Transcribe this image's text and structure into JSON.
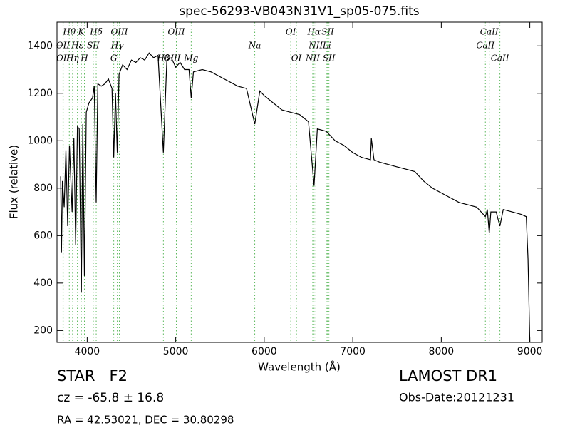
{
  "chart_data": {
    "type": "line",
    "title": "spec-56293-VB043N31V1_sp05-075.fits",
    "x_label": "Wavelength (Å)",
    "y_label": "Flux (relative)",
    "color": "#000000",
    "xlim": [
      3659,
      9140
    ],
    "ylim": [
      150,
      1500
    ],
    "xticks": [
      4000,
      5000,
      6000,
      7000,
      8000,
      9000
    ],
    "yticks": [
      200,
      400,
      600,
      800,
      1000,
      1200,
      1400
    ],
    "x": [
      3700,
      3710,
      3720,
      3740,
      3760,
      3780,
      3800,
      3830,
      3850,
      3870,
      3890,
      3910,
      3934,
      3950,
      3969,
      3990,
      4020,
      4060,
      4080,
      4102,
      4120,
      4160,
      4200,
      4240,
      4280,
      4300,
      4320,
      4340,
      4360,
      4400,
      4450,
      4500,
      4550,
      4600,
      4650,
      4700,
      4750,
      4800,
      4861,
      4900,
      4950,
      5000,
      5050,
      5100,
      5150,
      5175,
      5200,
      5300,
      5400,
      5500,
      5600,
      5700,
      5800,
      5893,
      5950,
      6000,
      6100,
      6200,
      6300,
      6400,
      6500,
      6563,
      6600,
      6700,
      6800,
      6900,
      7000,
      7100,
      7200,
      7210,
      7240,
      7300,
      7400,
      7500,
      7600,
      7700,
      7800,
      7900,
      8000,
      8100,
      8200,
      8300,
      8400,
      8498,
      8520,
      8542,
      8560,
      8620,
      8662,
      8700,
      8800,
      8900,
      8960,
      8980,
      9000
    ],
    "y": [
      850,
      530,
      830,
      720,
      960,
      640,
      980,
      700,
      1010,
      560,
      1060,
      1050,
      360,
      1070,
      430,
      1120,
      1160,
      1180,
      1230,
      740,
      1240,
      1230,
      1240,
      1260,
      1220,
      930,
      1200,
      950,
      1280,
      1320,
      1300,
      1340,
      1330,
      1350,
      1340,
      1370,
      1350,
      1360,
      950,
      1340,
      1350,
      1310,
      1330,
      1300,
      1300,
      1180,
      1290,
      1300,
      1290,
      1270,
      1250,
      1230,
      1220,
      1070,
      1210,
      1190,
      1160,
      1130,
      1120,
      1110,
      1080,
      810,
      1050,
      1040,
      1000,
      980,
      950,
      930,
      920,
      1010,
      920,
      910,
      900,
      890,
      880,
      870,
      830,
      800,
      780,
      760,
      740,
      730,
      720,
      680,
      710,
      610,
      700,
      700,
      640,
      710,
      700,
      690,
      680,
      500,
      150
    ],
    "line_color": "#5cb85c",
    "spectral_lines": [
      [
        {
          "label": "Hθ",
          "x": 3798
        },
        {
          "label": "K",
          "x": 3934
        },
        {
          "label": "Hδ",
          "x": 4102
        },
        {
          "label": "OIII",
          "x": 4363
        },
        {
          "label": "OIII",
          "x": 5007
        },
        {
          "label": "OI",
          "x": 6300
        },
        {
          "label": "Hα",
          "x": 6563
        },
        {
          "label": "SII",
          "x": 6717
        },
        {
          "label": "CaII",
          "x": 8542
        }
      ],
      [
        {
          "label": "OII",
          "x": 3727
        },
        {
          "label": "Hε",
          "x": 3889
        },
        {
          "label": "SII",
          "x": 4069
        },
        {
          "label": "Hγ",
          "x": 4340
        },
        {
          "label": "Na",
          "x": 5893
        },
        {
          "label": "NII",
          "x": 6583
        },
        {
          "label": "Li",
          "x": 6708
        },
        {
          "label": "CaII",
          "x": 8498
        }
      ],
      [
        {
          "label": "OII",
          "x": 3729
        },
        {
          "label": "Hη",
          "x": 3835
        },
        {
          "label": "H",
          "x": 3969
        },
        {
          "label": "G",
          "x": 4300
        },
        {
          "label": "Hβ",
          "x": 4861
        },
        {
          "label": "OIII",
          "x": 4959
        },
        {
          "label": "Mg",
          "x": 5175
        },
        {
          "label": "OI",
          "x": 6364
        },
        {
          "label": "NII",
          "x": 6548
        },
        {
          "label": "SII",
          "x": 6731
        },
        {
          "label": "CaII",
          "x": 8662
        }
      ]
    ]
  },
  "info": {
    "object_class": "STAR   F2",
    "redshift": "cz = -65.8 ± 16.8",
    "coordinates": "RA = 42.53021, DEC = 30.80298",
    "survey": "LAMOST DR1",
    "obs_date": "Obs-Date:20121231"
  }
}
